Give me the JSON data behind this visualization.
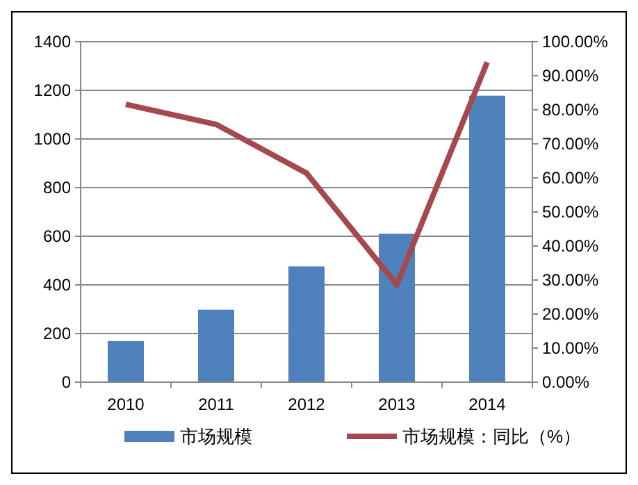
{
  "chart_data": {
    "type": "bar",
    "categories": [
      "2010",
      "2011",
      "2012",
      "2013",
      "2014"
    ],
    "series": [
      {
        "name": "市场规模",
        "color": "#4f81bd",
        "values": [
          169,
          298,
          476,
          610,
          1178
        ]
      },
      {
        "name": "市场规模：同比（%）",
        "type": "line",
        "axis": "y2",
        "color": "#a5494e",
        "values": [
          81.6,
          75.7,
          61.4,
          28.6,
          94
        ]
      }
    ],
    "ylim": [
      0,
      1400
    ],
    "yticks": [
      0,
      200,
      400,
      600,
      800,
      1000,
      1200,
      1400
    ],
    "y2lim": [
      0,
      100
    ],
    "y2ticks": [
      {
        "value": 0,
        "label": "0.00%"
      },
      {
        "value": 10,
        "label": "10.00%"
      },
      {
        "value": 20,
        "label": "20.00%"
      },
      {
        "value": 30,
        "label": "30.00%"
      },
      {
        "value": 40,
        "label": "40.00%"
      },
      {
        "value": 50,
        "label": "50.00%"
      },
      {
        "value": 60,
        "label": "60.00%"
      },
      {
        "value": 70,
        "label": "70.00%"
      },
      {
        "value": 80,
        "label": "80.00%"
      },
      {
        "value": 90,
        "label": "90.00%"
      },
      {
        "value": 100,
        "label": "100.00%"
      }
    ],
    "grid": "y",
    "legend": "bottom",
    "marker": "none"
  }
}
